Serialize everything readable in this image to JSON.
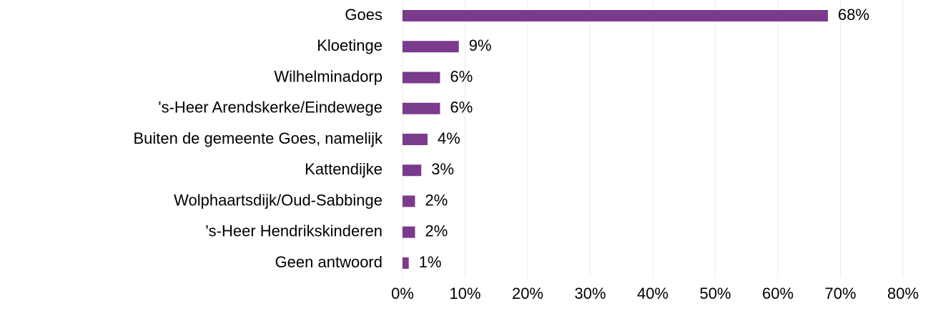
{
  "chart_data": {
    "type": "barh",
    "categories": [
      "Goes",
      "Kloetinge",
      "Wilhelminadorp",
      "'s-Heer Arendskerke/Eindewege",
      "Buiten de gemeente Goes, namelijk",
      "Kattendijke",
      "Wolphaartsdijk/Oud-Sabbinge",
      "'s-Heer Hendrikskinderen",
      "Geen antwoord"
    ],
    "values": [
      68,
      9,
      6,
      6,
      4,
      3,
      2,
      2,
      1
    ],
    "value_labels": [
      "68%",
      "9%",
      "6%",
      "6%",
      "4%",
      "3%",
      "2%",
      "2%",
      "1%"
    ],
    "color": "#7b3b8d",
    "xlim": [
      0,
      80
    ],
    "xticks": [
      {
        "value": 0,
        "label": "0%"
      },
      {
        "value": 10,
        "label": "10%"
      },
      {
        "value": 20,
        "label": "20%"
      },
      {
        "value": 30,
        "label": "30%"
      },
      {
        "value": 40,
        "label": "40%"
      },
      {
        "value": 50,
        "label": "50%"
      },
      {
        "value": 60,
        "label": "60%"
      },
      {
        "value": 70,
        "label": "70%"
      },
      {
        "value": 80,
        "label": "80%"
      }
    ],
    "grid": true
  }
}
